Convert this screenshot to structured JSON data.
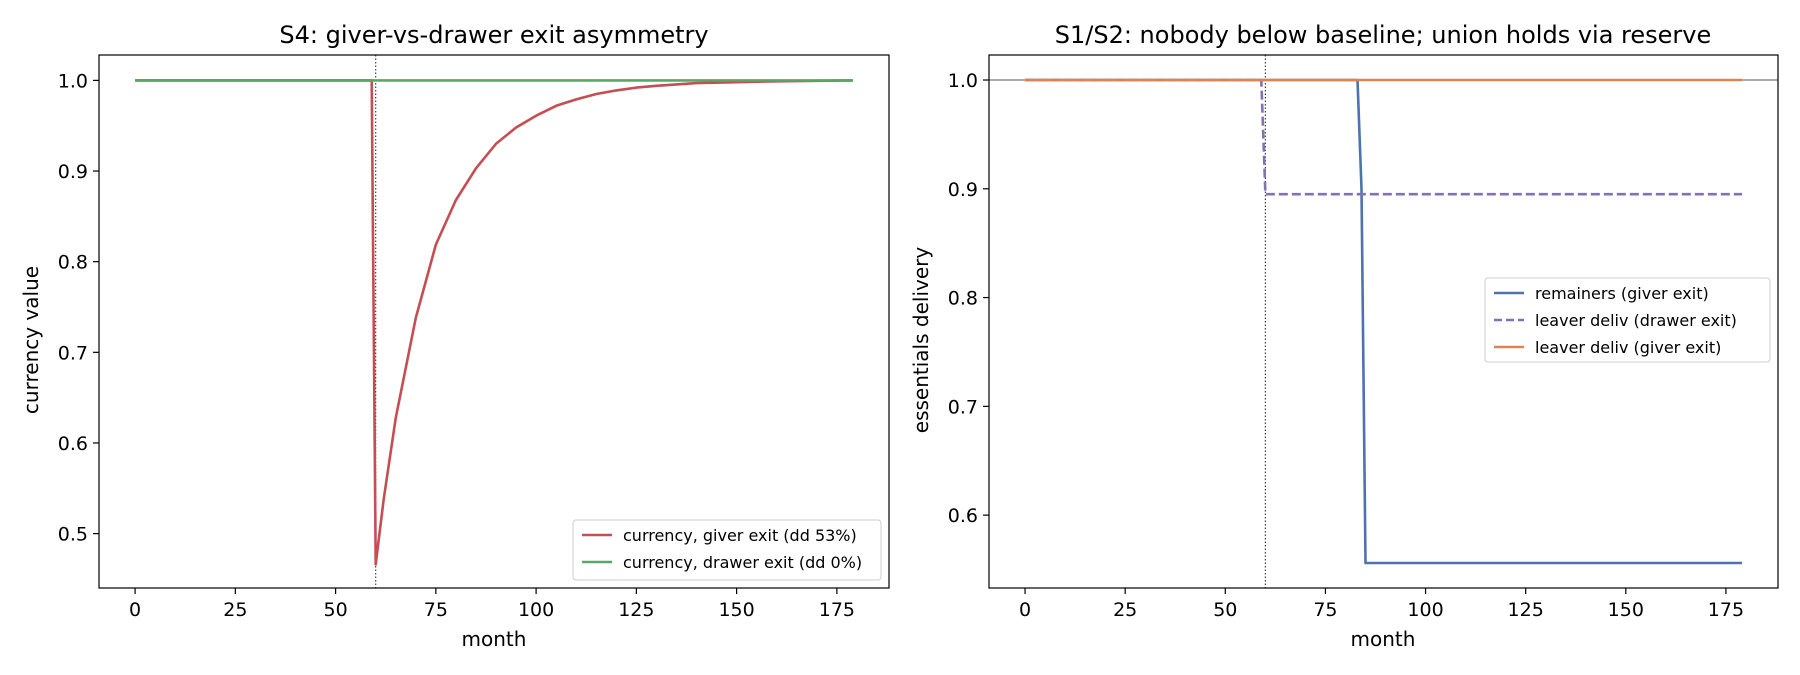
{
  "chart_data": [
    {
      "type": "line",
      "title": "S4: giver-vs-drawer exit asymmetry",
      "xlabel": "month",
      "ylabel": "currency value",
      "xlim": [
        -9,
        188
      ],
      "ylim": [
        0.44,
        1.028
      ],
      "xticks": [
        0,
        25,
        50,
        75,
        100,
        125,
        150,
        175
      ],
      "yticks": [
        0.5,
        0.6,
        0.7,
        0.8,
        0.9,
        1.0
      ],
      "grid": false,
      "legend_position": "lower-right",
      "vline": {
        "x": 60,
        "style": "dotted",
        "color": "#333333"
      },
      "series": [
        {
          "name": "currency, giver exit (dd 53%)",
          "color": "#c44e52",
          "style": "solid",
          "x": [
            0,
            59,
            60,
            62,
            65,
            70,
            75,
            80,
            85,
            90,
            95,
            100,
            105,
            110,
            115,
            120,
            125,
            130,
            140,
            150,
            160,
            170,
            179
          ],
          "y": [
            1.0,
            1.0,
            0.466,
            0.538,
            0.628,
            0.738,
            0.819,
            0.868,
            0.903,
            0.93,
            0.948,
            0.961,
            0.972,
            0.979,
            0.985,
            0.989,
            0.992,
            0.994,
            0.997,
            0.998,
            0.999,
            0.9995,
            1.0
          ]
        },
        {
          "name": "currency, drawer exit (dd 0%)",
          "color": "#55a868",
          "style": "solid",
          "x": [
            0,
            179
          ],
          "y": [
            1.0,
            1.0
          ]
        }
      ]
    },
    {
      "type": "line",
      "title": "S1/S2: nobody below baseline; union holds via reserve",
      "xlabel": "month",
      "ylabel": "essentials delivery",
      "xlim": [
        -9,
        188
      ],
      "ylim": [
        0.533,
        1.023
      ],
      "xticks": [
        0,
        25,
        50,
        75,
        100,
        125,
        150,
        175
      ],
      "yticks": [
        0.6,
        0.7,
        0.8,
        0.9,
        1.0
      ],
      "grid": false,
      "legend_position": "center-right",
      "vline": {
        "x": 60,
        "style": "dotted",
        "color": "#333333"
      },
      "hline": {
        "y": 1.0,
        "color": "#555555"
      },
      "series": [
        {
          "name": "remainers (giver exit)",
          "color": "#4c72b0",
          "style": "solid",
          "x": [
            0,
            83,
            84,
            85,
            179
          ],
          "y": [
            1.0,
            1.0,
            0.9,
            0.556,
            0.556
          ]
        },
        {
          "name": "leaver deliv (drawer exit)",
          "color": "#8172b3",
          "style": "dashed",
          "x": [
            0,
            59,
            60,
            179
          ],
          "y": [
            1.0,
            1.0,
            0.895,
            0.895
          ]
        },
        {
          "name": "leaver deliv (giver exit)",
          "color": "#dd8452",
          "style": "solid",
          "x": [
            0,
            179
          ],
          "y": [
            1.0,
            1.0
          ]
        }
      ]
    }
  ]
}
